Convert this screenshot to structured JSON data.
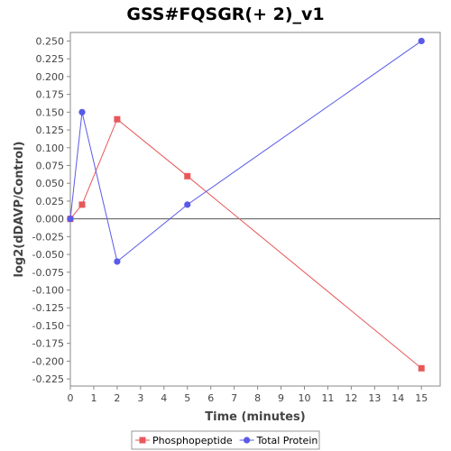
{
  "chart_data": {
    "type": "line",
    "title": "GSS#FQSGR(+ 2)_v1",
    "xlabel": "Time (minutes)",
    "ylabel": "log2(dDAVP/Control)",
    "xlim": [
      0,
      15.8
    ],
    "ylim": [
      -0.235,
      0.262
    ],
    "x_ticks": [
      0,
      1,
      2,
      3,
      4,
      5,
      6,
      7,
      8,
      9,
      10,
      11,
      12,
      13,
      14,
      15
    ],
    "y_ticks": [
      0.25,
      0.225,
      0.2,
      0.175,
      0.15,
      0.125,
      0.1,
      0.075,
      0.05,
      0.025,
      0.0,
      -0.025,
      -0.05,
      -0.075,
      -0.1,
      -0.125,
      -0.15,
      -0.175,
      -0.2,
      -0.225
    ],
    "y_tick_labels": [
      "0.250",
      "0.225",
      "0.200",
      "0.175",
      "0.150",
      "0.125",
      "0.100",
      "0.075",
      "0.050",
      "0.025",
      "0.000",
      "-0.025",
      "-0.050",
      "-0.075",
      "-0.100",
      "-0.125",
      "-0.150",
      "-0.175",
      "-0.200",
      "-0.225"
    ],
    "zero_line": true,
    "grid": false,
    "legend_position": "bottom",
    "series": [
      {
        "name": "Phosphopeptide",
        "color": "#e8585a",
        "marker": "square",
        "x": [
          0,
          0.5,
          2,
          5,
          15
        ],
        "y": [
          0.0,
          0.02,
          0.14,
          0.06,
          -0.21
        ]
      },
      {
        "name": "Total Protein",
        "color": "#5a5ae8",
        "marker": "circle",
        "x": [
          0,
          0.5,
          2,
          5,
          15
        ],
        "y": [
          0.0,
          0.15,
          -0.06,
          0.02,
          0.25
        ]
      }
    ]
  }
}
